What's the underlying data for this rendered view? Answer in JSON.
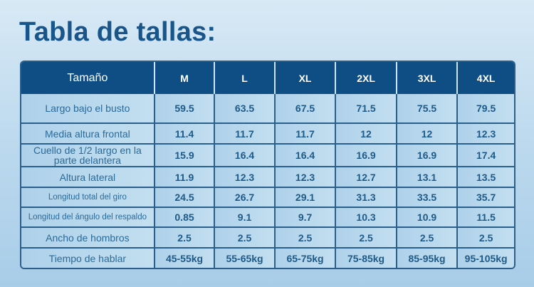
{
  "title": "Tabla de tallas:",
  "table": {
    "header": [
      "Tamaño",
      "M",
      "L",
      "XL",
      "2XL",
      "3XL",
      "4XL"
    ],
    "rows": [
      {
        "label": "Largo bajo el busto",
        "values": [
          "59.5",
          "63.5",
          "67.5",
          "71.5",
          "75.5",
          "79.5"
        ]
      },
      {
        "label": "Media altura frontal",
        "values": [
          "11.4",
          "11.7",
          "11.7",
          "12",
          "12",
          "12.3"
        ]
      },
      {
        "label": "Cuello de 1/2 largo en la parte delantera",
        "values": [
          "15.9",
          "16.4",
          "16.4",
          "16.9",
          "16.9",
          "17.4"
        ]
      },
      {
        "label": "Altura lateral",
        "values": [
          "11.9",
          "12.3",
          "12.3",
          "12.7",
          "13.1",
          "13.5"
        ]
      },
      {
        "label": "Longitud total del giro",
        "values": [
          "24.5",
          "26.7",
          "29.1",
          "31.3",
          "33.5",
          "35.7"
        ]
      },
      {
        "label": "Longitud del ángulo del respaldo",
        "values": [
          "0.85",
          "9.1",
          "9.7",
          "10.3",
          "10.9",
          "11.5"
        ]
      },
      {
        "label": "Ancho de hombros",
        "values": [
          "2.5",
          "2.5",
          "2.5",
          "2.5",
          "2.5",
          "2.5"
        ]
      },
      {
        "label": "Tiempo de hablar",
        "values": [
          "45-55kg",
          "55-65kg",
          "65-75kg",
          "75-85kg",
          "85-95kg",
          "95-105kg"
        ]
      }
    ]
  },
  "colors": {
    "header_bg": "#0e4e84",
    "title": "#17558b",
    "cell_bg": "#b3d4ea"
  }
}
